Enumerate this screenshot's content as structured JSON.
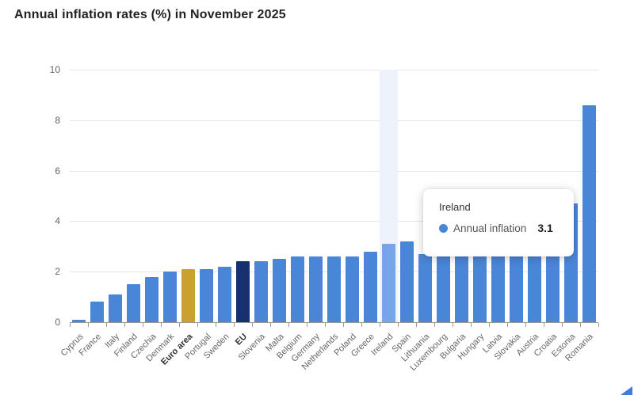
{
  "title": "Annual inflation rates (%) in November 2025",
  "colors": {
    "bar": "#4a86d8",
    "bar_highlight": "#78a4e8",
    "euro_area_bar": "#c8a22d",
    "eu_bar": "#17316e",
    "hover_band": "#eef2fa",
    "gridline": "#e6e6e6",
    "axis": "#9a9a9a",
    "label": "#666666",
    "title": "#222222"
  },
  "chart_data": {
    "type": "bar",
    "title": "Annual inflation rates (%) in November 2025",
    "xlabel": "",
    "ylabel": "",
    "ylim": [
      0,
      10
    ],
    "yticks": [
      0,
      2,
      4,
      6,
      8,
      10
    ],
    "grid": "horizontal",
    "legend": "none",
    "categories": [
      "Cyprus",
      "France",
      "Italy",
      "Finland",
      "Czechia",
      "Denmark",
      "Euro area",
      "Portugal",
      "Sweden",
      "EU",
      "Slovenia",
      "Malta",
      "Belgium",
      "Germany",
      "Netherlands",
      "Poland",
      "Greece",
      "Ireland",
      "Spain",
      "Lithuania",
      "Luxembourg",
      "Bulgaria",
      "Hungary",
      "Latvia",
      "Slovakia",
      "Austria",
      "Croatia",
      "Estonia",
      "Romania"
    ],
    "values": [
      0.1,
      0.8,
      1.1,
      1.5,
      1.8,
      2.0,
      2.1,
      2.1,
      2.2,
      2.4,
      2.4,
      2.5,
      2.6,
      2.6,
      2.6,
      2.6,
      2.8,
      3.1,
      3.2,
      2.7,
      2.7,
      2.7,
      2.7,
      2.7,
      2.7,
      2.7,
      2.7,
      4.7,
      8.6
    ],
    "series_name": "Annual inflation",
    "emphasized_categories": [
      "Euro area",
      "EU"
    ],
    "special_bars": {
      "Euro area": "euro-area",
      "EU": "eu",
      "Ireland": "highlight"
    },
    "hovered_category": "Ireland"
  },
  "tooltip": {
    "country": "Ireland",
    "series_label": "Annual inflation",
    "value": "3.1"
  }
}
